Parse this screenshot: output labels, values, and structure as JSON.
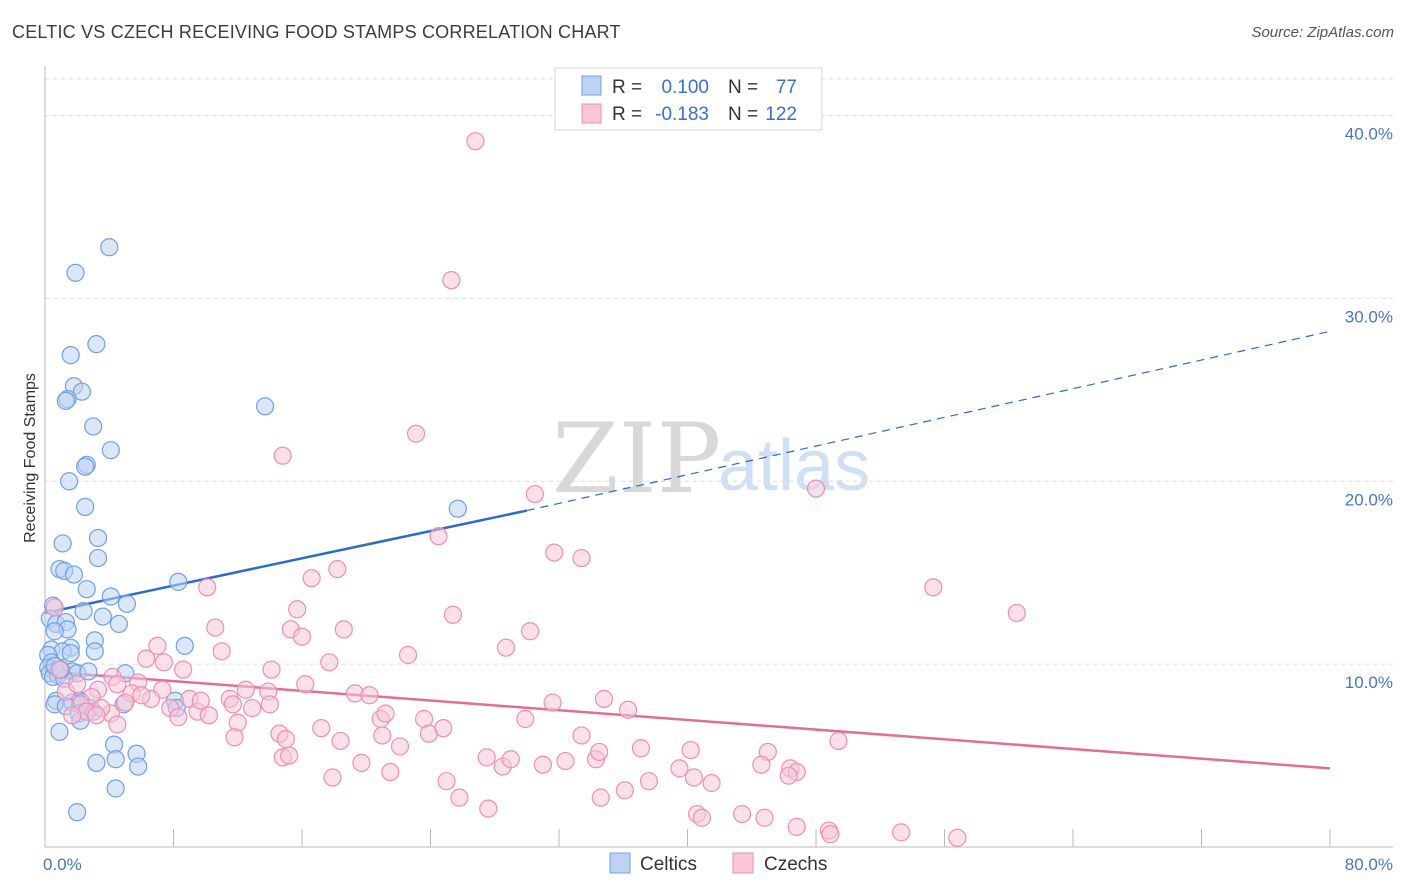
{
  "title": "CELTIC VS CZECH RECEIVING FOOD STAMPS CORRELATION CHART",
  "source": "Source: ZipAtlas.com",
  "watermark": {
    "zip": "ZIP",
    "atlas": "atlas"
  },
  "chart_data": {
    "type": "scatter",
    "title": "CELTIC VS CZECH RECEIVING FOOD STAMPS CORRELATION CHART",
    "xlabel": "",
    "ylabel": "Receiving Food Stamps",
    "xlim": [
      0,
      80
    ],
    "ylim": [
      0,
      42
    ],
    "x_tick_labels": [
      "0.0%",
      "80.0%"
    ],
    "y_ticks": [
      10,
      20,
      30,
      40
    ],
    "y_tick_labels": [
      "10.0%",
      "20.0%",
      "30.0%",
      "40.0%"
    ],
    "grid": true,
    "legend": {
      "placement": "top-center",
      "entries": [
        {
          "r_label": "R =",
          "r_value": "0.100",
          "n_label": "N =",
          "n_value": "77"
        },
        {
          "r_label": "R =",
          "r_value": "-0.183",
          "n_label": "N =",
          "n_value": "122"
        }
      ]
    },
    "series": [
      {
        "name": "Celtics",
        "color": "#6fa0e8",
        "fill": "#bcd3f3",
        "trend": {
          "x0": 0,
          "y0": 12.8,
          "x1": 30,
          "y1": 18.4,
          "dash_x1": 80,
          "dash_y1": 28.2,
          "color": "#2a6bd0"
        },
        "points": [
          [
            4.0,
            32.8
          ],
          [
            1.9,
            31.4
          ],
          [
            3.2,
            27.5
          ],
          [
            1.6,
            26.9
          ],
          [
            1.8,
            25.2
          ],
          [
            2.3,
            24.9
          ],
          [
            1.4,
            24.5
          ],
          [
            1.3,
            24.4
          ],
          [
            13.7,
            24.1
          ],
          [
            3.0,
            23.0
          ],
          [
            4.1,
            21.7
          ],
          [
            2.6,
            20.9
          ],
          [
            2.5,
            20.8
          ],
          [
            1.5,
            20.0
          ],
          [
            2.5,
            18.6
          ],
          [
            25.7,
            18.5
          ],
          [
            1.1,
            16.6
          ],
          [
            3.3,
            16.9
          ],
          [
            3.3,
            15.8
          ],
          [
            0.9,
            15.2
          ],
          [
            1.2,
            15.1
          ],
          [
            1.8,
            14.9
          ],
          [
            8.3,
            14.5
          ],
          [
            2.6,
            14.1
          ],
          [
            4.1,
            13.7
          ],
          [
            0.5,
            13.2
          ],
          [
            5.1,
            13.3
          ],
          [
            2.4,
            12.9
          ],
          [
            3.6,
            12.6
          ],
          [
            0.3,
            12.5
          ],
          [
            0.7,
            12.2
          ],
          [
            1.3,
            12.3
          ],
          [
            4.6,
            12.2
          ],
          [
            1.4,
            11.9
          ],
          [
            0.6,
            11.8
          ],
          [
            3.1,
            11.3
          ],
          [
            1.6,
            10.9
          ],
          [
            8.7,
            11.0
          ],
          [
            0.4,
            10.8
          ],
          [
            1.1,
            10.7
          ],
          [
            1.6,
            10.6
          ],
          [
            3.1,
            10.7
          ],
          [
            0.2,
            10.5
          ],
          [
            0.4,
            10.1
          ],
          [
            0.2,
            9.8
          ],
          [
            0.6,
            9.6
          ],
          [
            0.3,
            9.5
          ],
          [
            0.8,
            9.4
          ],
          [
            1.7,
            9.6
          ],
          [
            2.0,
            9.5
          ],
          [
            2.7,
            9.6
          ],
          [
            5.0,
            9.5
          ],
          [
            0.5,
            9.3
          ],
          [
            1.2,
            9.2
          ],
          [
            0.7,
            8.0
          ],
          [
            2.2,
            8.0
          ],
          [
            1.7,
            7.9
          ],
          [
            2.3,
            7.9
          ],
          [
            0.6,
            7.8
          ],
          [
            4.9,
            7.8
          ],
          [
            8.1,
            8.0
          ],
          [
            8.2,
            7.6
          ],
          [
            1.3,
            7.7
          ],
          [
            2.8,
            7.6
          ],
          [
            2.1,
            7.3
          ],
          [
            3.0,
            7.4
          ],
          [
            2.2,
            6.9
          ],
          [
            0.9,
            6.3
          ],
          [
            5.7,
            5.1
          ],
          [
            4.3,
            5.6
          ],
          [
            3.2,
            4.6
          ],
          [
            5.8,
            4.4
          ],
          [
            4.4,
            4.8
          ],
          [
            4.4,
            3.2
          ],
          [
            2.0,
            1.9
          ],
          [
            0.6,
            9.9
          ],
          [
            1.0,
            9.7
          ]
        ]
      },
      {
        "name": "Czechs",
        "color": "#ee8fb0",
        "fill": "#f8c6d8",
        "trend": {
          "x0": 0,
          "y0": 9.6,
          "x1": 80,
          "y1": 4.3,
          "color": "#e46d98"
        },
        "points": [
          [
            26.8,
            38.6
          ],
          [
            25.3,
            31.0
          ],
          [
            23.1,
            22.6
          ],
          [
            14.8,
            21.4
          ],
          [
            30.5,
            19.3
          ],
          [
            48.0,
            19.6
          ],
          [
            24.5,
            17.0
          ],
          [
            31.7,
            16.1
          ],
          [
            33.4,
            15.8
          ],
          [
            18.2,
            15.2
          ],
          [
            16.6,
            14.7
          ],
          [
            10.1,
            14.2
          ],
          [
            55.3,
            14.2
          ],
          [
            60.5,
            12.8
          ],
          [
            25.4,
            12.7
          ],
          [
            15.7,
            13.0
          ],
          [
            10.6,
            12.0
          ],
          [
            15.3,
            11.9
          ],
          [
            18.6,
            11.9
          ],
          [
            30.2,
            11.8
          ],
          [
            16.0,
            11.5
          ],
          [
            28.7,
            10.9
          ],
          [
            7.0,
            11.0
          ],
          [
            11.0,
            10.7
          ],
          [
            22.6,
            10.5
          ],
          [
            6.3,
            10.3
          ],
          [
            7.4,
            10.1
          ],
          [
            17.7,
            10.1
          ],
          [
            8.6,
            9.7
          ],
          [
            14.1,
            9.7
          ],
          [
            4.2,
            9.3
          ],
          [
            5.8,
            9.0
          ],
          [
            4.5,
            8.9
          ],
          [
            16.2,
            8.9
          ],
          [
            3.3,
            8.6
          ],
          [
            7.3,
            8.6
          ],
          [
            12.5,
            8.6
          ],
          [
            13.9,
            8.5
          ],
          [
            5.4,
            8.4
          ],
          [
            9.0,
            8.1
          ],
          [
            11.5,
            8.1
          ],
          [
            19.3,
            8.4
          ],
          [
            20.2,
            8.3
          ],
          [
            6.6,
            8.1
          ],
          [
            2.9,
            8.2
          ],
          [
            2.2,
            7.8
          ],
          [
            31.6,
            7.9
          ],
          [
            34.8,
            8.1
          ],
          [
            7.8,
            7.6
          ],
          [
            9.5,
            7.4
          ],
          [
            11.7,
            7.8
          ],
          [
            12.9,
            7.6
          ],
          [
            14.0,
            7.8
          ],
          [
            2.6,
            7.4
          ],
          [
            4.1,
            7.3
          ],
          [
            1.7,
            7.2
          ],
          [
            8.3,
            7.1
          ],
          [
            10.2,
            7.2
          ],
          [
            20.9,
            7.0
          ],
          [
            21.2,
            7.3
          ],
          [
            23.6,
            7.0
          ],
          [
            29.9,
            7.0
          ],
          [
            36.3,
            7.5
          ],
          [
            4.5,
            6.7
          ],
          [
            12.0,
            6.8
          ],
          [
            17.2,
            6.5
          ],
          [
            14.6,
            6.2
          ],
          [
            11.8,
            6.0
          ],
          [
            15.0,
            5.9
          ],
          [
            21.0,
            6.1
          ],
          [
            23.9,
            6.2
          ],
          [
            22.1,
            5.5
          ],
          [
            18.4,
            5.8
          ],
          [
            24.8,
            6.5
          ],
          [
            33.4,
            6.1
          ],
          [
            40.2,
            5.3
          ],
          [
            45.0,
            5.2
          ],
          [
            49.4,
            5.8
          ],
          [
            37.1,
            5.4
          ],
          [
            14.8,
            4.9
          ],
          [
            15.2,
            5.0
          ],
          [
            19.7,
            4.6
          ],
          [
            21.5,
            4.1
          ],
          [
            27.5,
            4.9
          ],
          [
            28.5,
            4.4
          ],
          [
            29.0,
            4.8
          ],
          [
            31.0,
            4.5
          ],
          [
            32.4,
            4.7
          ],
          [
            34.3,
            4.8
          ],
          [
            34.5,
            5.2
          ],
          [
            39.5,
            4.3
          ],
          [
            44.6,
            4.5
          ],
          [
            46.4,
            4.3
          ],
          [
            46.8,
            4.1
          ],
          [
            46.3,
            3.9
          ],
          [
            41.5,
            3.5
          ],
          [
            40.4,
            3.8
          ],
          [
            37.6,
            3.6
          ],
          [
            36.1,
            3.1
          ],
          [
            25.0,
            3.6
          ],
          [
            17.9,
            3.8
          ],
          [
            25.8,
            2.7
          ],
          [
            27.6,
            2.1
          ],
          [
            34.6,
            2.7
          ],
          [
            43.4,
            1.8
          ],
          [
            44.8,
            1.6
          ],
          [
            40.6,
            1.8
          ],
          [
            40.9,
            1.6
          ],
          [
            46.8,
            1.1
          ],
          [
            48.8,
            0.9
          ],
          [
            48.9,
            0.7
          ],
          [
            53.3,
            0.8
          ],
          [
            56.8,
            0.5
          ],
          [
            0.6,
            13.1
          ],
          [
            0.9,
            9.7
          ],
          [
            1.3,
            8.5
          ],
          [
            2.0,
            8.9
          ],
          [
            3.5,
            7.6
          ],
          [
            5.0,
            7.9
          ],
          [
            3.2,
            7.2
          ],
          [
            6.0,
            8.3
          ],
          [
            9.7,
            8.0
          ]
        ]
      }
    ]
  }
}
